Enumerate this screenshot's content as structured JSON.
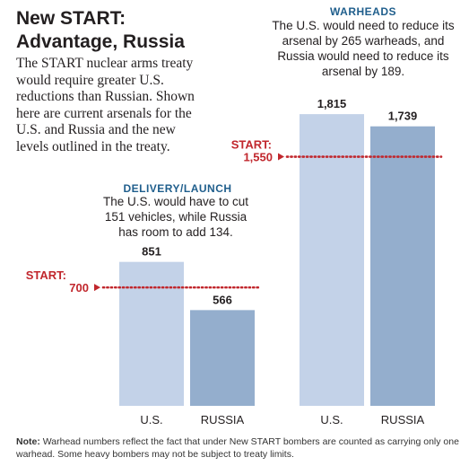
{
  "title_line1": "New START:",
  "title_line2": "Advantage, Russia",
  "intro": "The START nuclear arms treaty would require greater U.S. reductions than Russian. Shown here are current arsenals for the U.S. and Russia and the new levels outlined in the treaty.",
  "note_label": "Note:",
  "note_text": "Warhead numbers reflect the fact that under New START bombers are counted as carrying only one warhead. Some heavy bombers may not be subject to treaty limits.",
  "colors": {
    "us_bar": "#c3d2e8",
    "russia_bar": "#94aecd",
    "limit_line": "#c1272d",
    "group_title": "#1f5e8c"
  },
  "chart_data": [
    {
      "type": "bar",
      "title": "DELIVERY/LAUNCH",
      "subtitle": "The U.S. would have to cut 151 vehicles, while Russia has room to add 134.",
      "categories": [
        "U.S.",
        "RUSSIA"
      ],
      "values": [
        851,
        566
      ],
      "value_labels": [
        "851",
        "566"
      ],
      "limit": {
        "label_line1": "START:",
        "label_line2": "700",
        "value": 700
      }
    },
    {
      "type": "bar",
      "title": "WARHEADS",
      "subtitle": "The U.S. would need to reduce its arsenal by 265 warheads, and Russia would need to reduce its arsenal by 189.",
      "categories": [
        "U.S.",
        "RUSSIA"
      ],
      "values": [
        1815,
        1739
      ],
      "value_labels": [
        "1,815",
        "1,739"
      ],
      "limit": {
        "label_line1": "START:",
        "label_line2": "1,550",
        "value": 1550
      }
    }
  ]
}
